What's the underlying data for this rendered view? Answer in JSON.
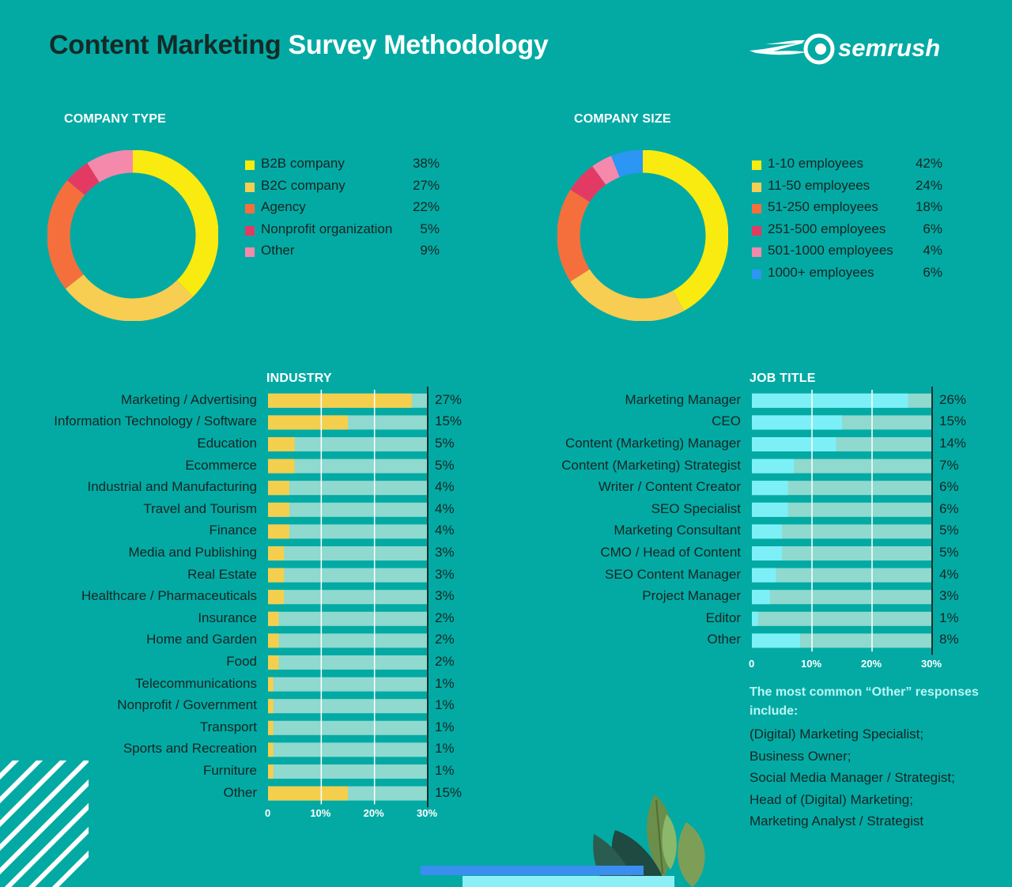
{
  "title": {
    "part1": "Content Marketing",
    "part2": "Survey Methodology"
  },
  "brand": {
    "name": "semrush"
  },
  "colors": {
    "background": "#03aaa4",
    "bar_industry": "#f4cf4d",
    "bar_job": "#7df0f7",
    "bar_track": "#8fd9cf",
    "text_dark": "#152523"
  },
  "chart_data": [
    {
      "type": "pie",
      "variant": "donut",
      "title": "COMPANY TYPE",
      "legend_position": "right",
      "slices": [
        {
          "label": "B2B company",
          "value": 38,
          "display": "38%",
          "color": "#f9eb0f"
        },
        {
          "label": "B2C company",
          "value": 27,
          "display": "27%",
          "color": "#f7cd52"
        },
        {
          "label": "Agency",
          "value": 22,
          "display": "22%",
          "color": "#f56f3d"
        },
        {
          "label": "Nonprofit organization",
          "value": 5,
          "display": "5%",
          "color": "#e33a63"
        },
        {
          "label": "Other",
          "value": 9,
          "display": "9%",
          "color": "#f589ac"
        }
      ]
    },
    {
      "type": "pie",
      "variant": "donut",
      "title": "COMPANY SIZE",
      "legend_position": "right",
      "slices": [
        {
          "label": "1-10 employees",
          "value": 42,
          "display": "42%",
          "color": "#f9eb0f"
        },
        {
          "label": "11-50 employees",
          "value": 24,
          "display": "24%",
          "color": "#f7cd52"
        },
        {
          "label": "51-250 employees",
          "value": 18,
          "display": "18%",
          "color": "#f56f3d"
        },
        {
          "label": "251-500 employees",
          "value": 6,
          "display": "6%",
          "color": "#e33a63"
        },
        {
          "label": "501-1000 employees",
          "value": 4,
          "display": "4%",
          "color": "#f589ac"
        },
        {
          "label": "1000+ employees",
          "value": 6,
          "display": "6%",
          "color": "#2b96f3"
        }
      ]
    },
    {
      "type": "bar",
      "orientation": "horizontal",
      "title": "INDUSTRY",
      "xlim": [
        0,
        30
      ],
      "ticks": [
        "0",
        "10%",
        "20%",
        "30%"
      ],
      "bar_color": "#f4cf4d",
      "categories": [
        "Marketing / Advertising",
        "Information Technology / Software",
        "Education",
        "Ecommerce",
        "Industrial and Manufacturing",
        "Travel and Tourism",
        "Finance",
        "Media and Publishing",
        "Real Estate",
        "Healthcare / Pharmaceuticals",
        "Insurance",
        "Home and Garden",
        "Food",
        "Telecommunications",
        "Nonprofit / Government",
        "Transport",
        "Sports and Recreation",
        "Furniture",
        "Other"
      ],
      "values": [
        27,
        15,
        5,
        5,
        4,
        4,
        4,
        3,
        3,
        3,
        2,
        2,
        2,
        1,
        1,
        1,
        1,
        1,
        15
      ],
      "display": [
        "27%",
        "15%",
        "5%",
        "5%",
        "4%",
        "4%",
        "4%",
        "3%",
        "3%",
        "3%",
        "2%",
        "2%",
        "2%",
        "1%",
        "1%",
        "1%",
        "1%",
        "1%",
        "15%"
      ]
    },
    {
      "type": "bar",
      "orientation": "horizontal",
      "title": "JOB TITLE",
      "xlim": [
        0,
        30
      ],
      "ticks": [
        "0",
        "10%",
        "20%",
        "30%"
      ],
      "bar_color": "#7df0f7",
      "categories": [
        "Marketing Manager",
        "CEO",
        "Content (Marketing) Manager",
        "Content (Marketing) Strategist",
        "Writer / Content Creator",
        "SEO Specialist",
        "Marketing Consultant",
        "CMO / Head of Content",
        "SEO Content Manager",
        "Project Manager",
        "Editor",
        "Other"
      ],
      "values": [
        26,
        15,
        14,
        7,
        6,
        6,
        5,
        5,
        4,
        3,
        1,
        8
      ],
      "display": [
        "26%",
        "15%",
        "14%",
        "7%",
        "6%",
        "6%",
        "5%",
        "5%",
        "4%",
        "3%",
        "1%",
        "8%"
      ]
    }
  ],
  "other_note": {
    "heading": "The most common “Other” responses include:",
    "items": [
      "(Digital) Marketing Specialist;",
      "Business Owner;",
      "Social Media Manager / Strategist;",
      "Head of (Digital) Marketing;",
      "Marketing Analyst / Strategist"
    ]
  }
}
